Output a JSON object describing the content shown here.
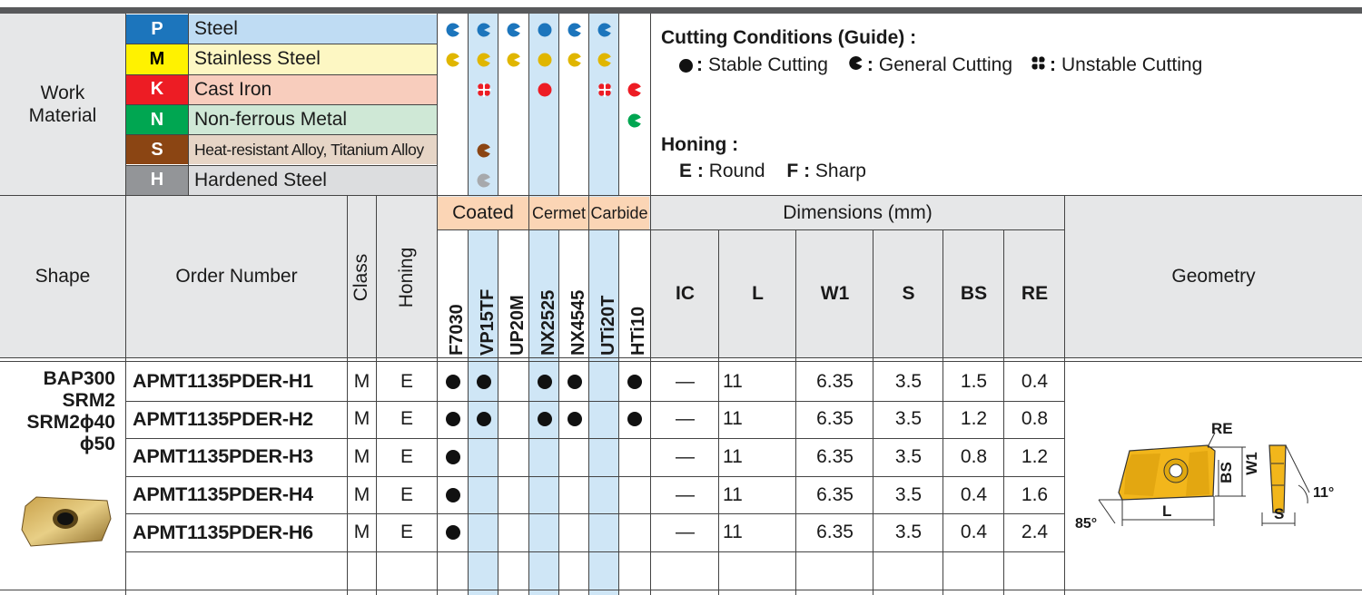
{
  "work_material": {
    "title": "Work\nMaterial",
    "rows": [
      {
        "code": "P",
        "name": "Steel",
        "code_bg": "#1c75bc",
        "code_fg": "#ffffff",
        "name_bg": "#bfdcf3"
      },
      {
        "code": "M",
        "name": "Stainless Steel",
        "code_bg": "#fff200",
        "code_fg": "#000000",
        "name_bg": "#fdf7c3"
      },
      {
        "code": "K",
        "name": "Cast Iron",
        "code_bg": "#ed1c24",
        "code_fg": "#ffffff",
        "name_bg": "#f8cdbd"
      },
      {
        "code": "N",
        "name": "Non-ferrous Metal",
        "code_bg": "#00a651",
        "code_fg": "#ffffff",
        "name_bg": "#cfe8d6"
      },
      {
        "code": "S",
        "name": "Heat-resistant Alloy, Titanium Alloy",
        "code_bg": "#8b4513",
        "code_fg": "#ffffff",
        "name_bg": "#e6d5c6"
      },
      {
        "code": "H",
        "name": "Hardened Steel",
        "code_bg": "#939598",
        "code_fg": "#ffffff",
        "name_bg": "#dcdddf"
      }
    ]
  },
  "cutting_conditions": {
    "title": "Cutting Conditions (Guide)",
    "legend": [
      {
        "icon": "stable-cutting-icon",
        "label": "Stable Cutting"
      },
      {
        "icon": "general-cutting-icon",
        "label": "General Cutting"
      },
      {
        "icon": "unstable-cutting-icon",
        "label": "Unstable Cutting"
      }
    ]
  },
  "honing": {
    "title": "Honing",
    "items": [
      {
        "code": "E",
        "label": "Round"
      },
      {
        "code": "F",
        "label": "Sharp"
      }
    ]
  },
  "colors": {
    "P": "#1c75bc",
    "M": "#e0b600",
    "K": "#ed1c24",
    "N": "#00a651",
    "S": "#8b4513",
    "H": "#a7a9ac",
    "highlight_column": "#cfe6f6",
    "group_header": "#fbd5b5"
  },
  "grades": [
    "F7030",
    "VP15TF",
    "UP20M",
    "NX2525",
    "NX4545",
    "UTi20T",
    "HTi10"
  ],
  "grade_groups": [
    {
      "label": "Coated"
    },
    {
      "label": "Cermet"
    },
    {
      "label": "Carbide"
    }
  ],
  "suitability": {
    "P": [
      {
        "col": 0,
        "type": "general"
      },
      {
        "col": 1,
        "type": "general"
      },
      {
        "col": 2,
        "type": "general"
      },
      {
        "col": 3,
        "type": "stable"
      },
      {
        "col": 4,
        "type": "general"
      },
      {
        "col": 5,
        "type": "general"
      }
    ],
    "M": [
      {
        "col": 0,
        "type": "general"
      },
      {
        "col": 1,
        "type": "general"
      },
      {
        "col": 2,
        "type": "general"
      },
      {
        "col": 3,
        "type": "stable"
      },
      {
        "col": 4,
        "type": "general"
      },
      {
        "col": 5,
        "type": "general"
      }
    ],
    "K": [
      {
        "col": 1,
        "type": "unstable"
      },
      {
        "col": 3,
        "type": "stable"
      },
      {
        "col": 5,
        "type": "unstable"
      },
      {
        "col": 6,
        "type": "general"
      }
    ],
    "N": [
      {
        "col": 6,
        "type": "general"
      }
    ],
    "S": [
      {
        "col": 1,
        "type": "general"
      }
    ],
    "H": [
      {
        "col": 1,
        "type": "general"
      }
    ]
  },
  "headers": {
    "shape": "Shape",
    "order_number": "Order Number",
    "class": "Class",
    "honing": "Honing",
    "dimensions": "Dimensions (mm)",
    "dims": [
      "IC",
      "L",
      "W1",
      "S",
      "BS",
      "RE"
    ],
    "geometry": "Geometry"
  },
  "shape_labels": [
    "BAP300",
    "SRM2",
    "SRM2ϕ40",
    "ϕ50"
  ],
  "products": [
    {
      "order": "APMT1135PDER-H1",
      "class": "M",
      "honing": "E",
      "stock": [
        0,
        1,
        3,
        4,
        6
      ],
      "IC": "—",
      "L": "11",
      "W1": "6.35",
      "S": "3.5",
      "BS": "1.5",
      "RE": "0.4"
    },
    {
      "order": "APMT1135PDER-H2",
      "class": "M",
      "honing": "E",
      "stock": [
        0,
        1,
        3,
        4,
        6
      ],
      "IC": "—",
      "L": "11",
      "W1": "6.35",
      "S": "3.5",
      "BS": "1.2",
      "RE": "0.8"
    },
    {
      "order": "APMT1135PDER-H3",
      "class": "M",
      "honing": "E",
      "stock": [
        0
      ],
      "IC": "—",
      "L": "11",
      "W1": "6.35",
      "S": "3.5",
      "BS": "0.8",
      "RE": "1.2"
    },
    {
      "order": "APMT1135PDER-H4",
      "class": "M",
      "honing": "E",
      "stock": [
        0
      ],
      "IC": "—",
      "L": "11",
      "W1": "6.35",
      "S": "3.5",
      "BS": "0.4",
      "RE": "1.6"
    },
    {
      "order": "APMT1135PDER-H6",
      "class": "M",
      "honing": "E",
      "stock": [
        0
      ],
      "IC": "—",
      "L": "11",
      "W1": "6.35",
      "S": "3.5",
      "BS": "0.4",
      "RE": "2.4"
    }
  ],
  "geometry_labels": {
    "re": "RE",
    "bs": "BS",
    "w1": "W1",
    "l": "L",
    "s": "S",
    "angle_85": "85°",
    "angle_11": "11°"
  }
}
